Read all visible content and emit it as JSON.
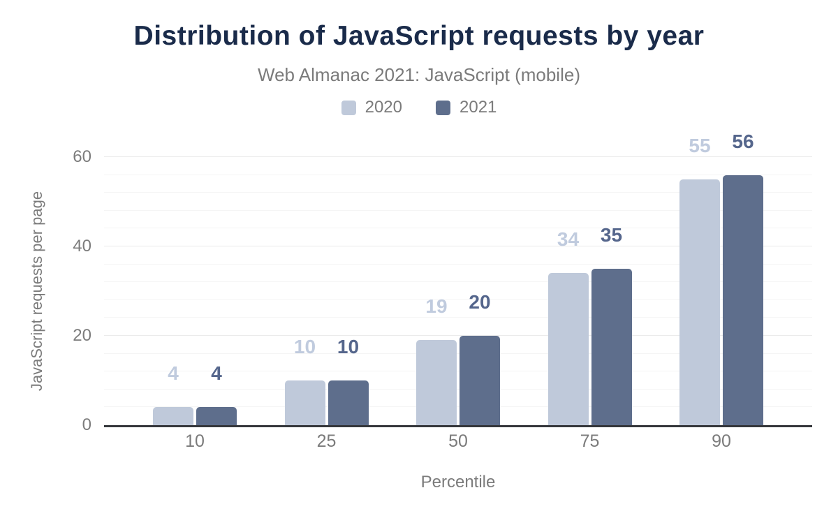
{
  "chart_data": {
    "type": "bar",
    "title": "Distribution of JavaScript requests by year",
    "subtitle": "Web Almanac 2021: JavaScript (mobile)",
    "xlabel": "Percentile",
    "ylabel": "JavaScript requests per page",
    "categories": [
      "10",
      "25",
      "50",
      "75",
      "90"
    ],
    "series": [
      {
        "name": "2020",
        "color": "#bfc9da",
        "label_color": "#c0cbde",
        "values": [
          4,
          10,
          19,
          34,
          55
        ]
      },
      {
        "name": "2021",
        "color": "#5e6e8c",
        "label_color": "#55668c",
        "values": [
          4,
          10,
          20,
          35,
          56
        ]
      }
    ],
    "ylim": [
      0,
      60
    ],
    "yticks": [
      0,
      20,
      40,
      60
    ],
    "minor_grid_step": 4,
    "grid": true,
    "legend_position": "top",
    "colors": {
      "title": "#1a2b4a",
      "muted_text": "#7b7b7b",
      "axis_line": "#35373b",
      "major_gridline": "#ebebeb",
      "minor_gridline": "#f5f5f5",
      "background": "#ffffff"
    }
  }
}
